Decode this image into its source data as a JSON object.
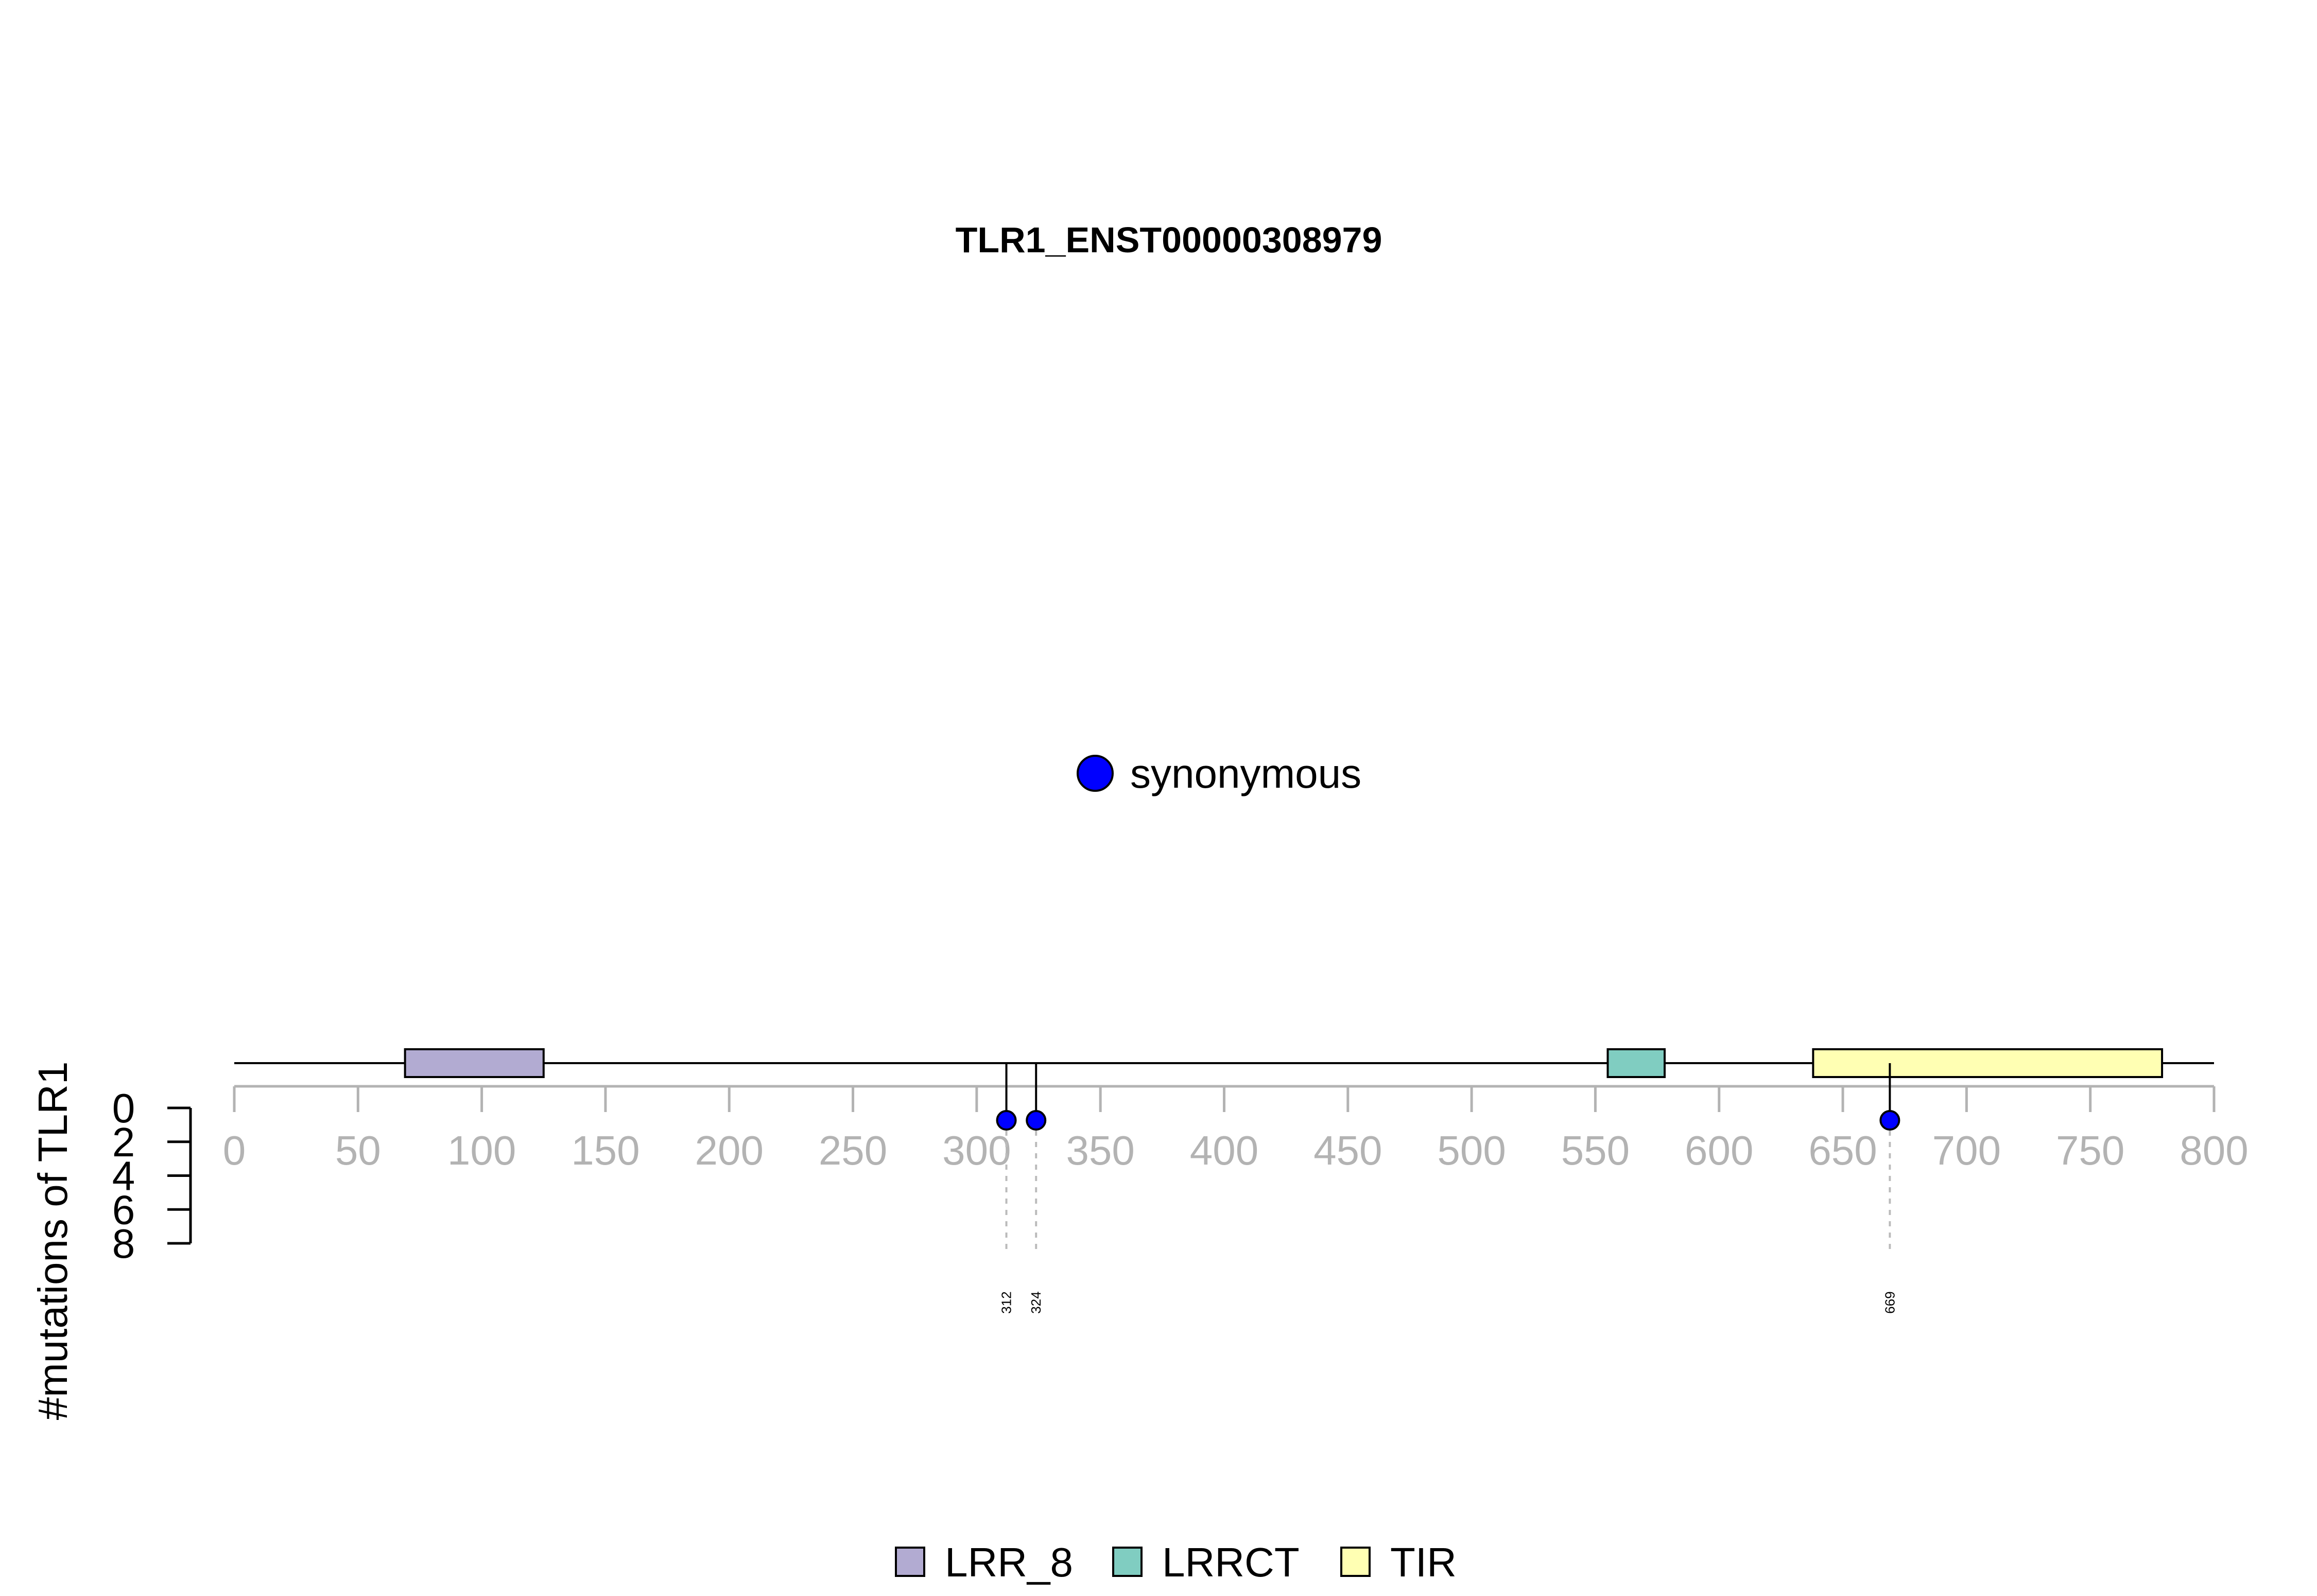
{
  "chart_data": {
    "type": "lollipop",
    "title": "TLR1_ENST00000308979",
    "ylabel": "#mutations of TLR1",
    "protein_length": 800,
    "x_ticks": [
      0,
      50,
      100,
      150,
      200,
      250,
      300,
      350,
      400,
      450,
      500,
      550,
      600,
      650,
      700,
      750,
      800
    ],
    "y_ticks": [
      0,
      2,
      4,
      6,
      8
    ],
    "ylim": [
      0,
      8
    ],
    "domains": [
      {
        "name": "LRR_8",
        "start": 69,
        "end": 125,
        "color": "#b2abd2"
      },
      {
        "name": "LRRCT",
        "start": 555,
        "end": 578,
        "color": "#80cdc1"
      },
      {
        "name": "TIR",
        "start": 638,
        "end": 779,
        "color": "#ffffb3"
      }
    ],
    "mutations": [
      {
        "position": 312,
        "count": 1,
        "type": "synonymous",
        "label": "312"
      },
      {
        "position": 324,
        "count": 1,
        "type": "synonymous",
        "label": "324"
      },
      {
        "position": 669,
        "count": 1,
        "type": "synonymous",
        "label": "669"
      }
    ],
    "mutation_legend": [
      {
        "label": "synonymous",
        "color": "#0000ff"
      }
    ],
    "domain_legend": [
      {
        "label": "LRR_8",
        "color": "#b2abd2"
      },
      {
        "label": "LRRCT",
        "color": "#80cdc1"
      },
      {
        "label": "TIR",
        "color": "#ffffb3"
      }
    ]
  }
}
